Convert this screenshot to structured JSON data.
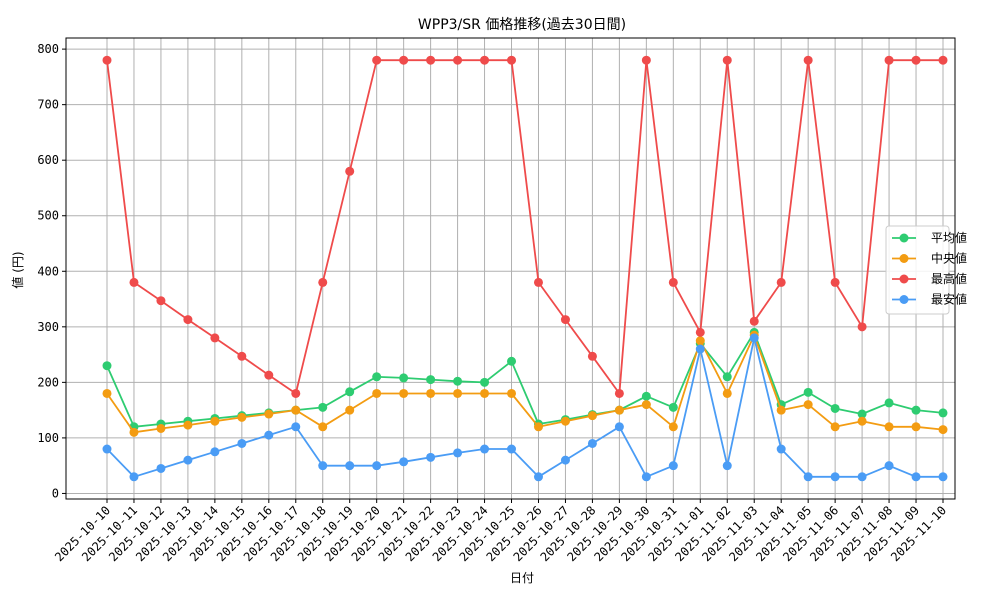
{
  "chart_data": {
    "type": "line",
    "title": "WPP3/SR 価格推移(過去30日間)",
    "xlabel": "日付",
    "ylabel": "値 (円)",
    "ylim": [
      -10,
      820
    ],
    "yticks": [
      0,
      100,
      200,
      300,
      400,
      500,
      600,
      700,
      800
    ],
    "grid": true,
    "legend_position": "center-right",
    "categories": [
      "2025-10-10",
      "2025-10-11",
      "2025-10-12",
      "2025-10-13",
      "2025-10-14",
      "2025-10-15",
      "2025-10-16",
      "2025-10-17",
      "2025-10-18",
      "2025-10-19",
      "2025-10-20",
      "2025-10-21",
      "2025-10-22",
      "2025-10-23",
      "2025-10-24",
      "2025-10-25",
      "2025-10-26",
      "2025-10-27",
      "2025-10-28",
      "2025-10-29",
      "2025-10-30",
      "2025-10-31",
      "2025-11-01",
      "2025-11-02",
      "2025-11-03",
      "2025-11-04",
      "2025-11-05",
      "2025-11-06",
      "2025-11-07",
      "2025-11-08",
      "2025-11-09",
      "2025-11-10"
    ],
    "series": [
      {
        "name": "平均値",
        "color": "#2ecc71",
        "values": [
          230,
          120,
          125,
          130,
          135,
          140,
          145,
          150,
          155,
          183,
          210,
          208,
          205,
          202,
          200,
          238,
          125,
          133,
          142,
          150,
          175,
          155,
          270,
          210,
          290,
          160,
          182,
          153,
          143,
          163,
          150,
          145
        ]
      },
      {
        "name": "中央値",
        "color": "#f39c12",
        "values": [
          180,
          110,
          117,
          123,
          130,
          137,
          143,
          150,
          120,
          150,
          180,
          180,
          180,
          180,
          180,
          180,
          120,
          130,
          140,
          150,
          160,
          120,
          275,
          180,
          285,
          150,
          160,
          120,
          130,
          120,
          120,
          115
        ]
      },
      {
        "name": "最高値",
        "color": "#ef4b4b",
        "values": [
          780,
          380,
          347,
          313,
          280,
          247,
          213,
          180,
          380,
          580,
          780,
          780,
          780,
          780,
          780,
          780,
          380,
          313,
          247,
          180,
          780,
          380,
          290,
          780,
          310,
          380,
          780,
          380,
          300,
          780,
          780,
          780
        ]
      },
      {
        "name": "最安値",
        "color": "#4a9cf5",
        "values": [
          80,
          30,
          45,
          60,
          75,
          90,
          105,
          120,
          50,
          50,
          50,
          57,
          65,
          73,
          80,
          80,
          30,
          60,
          90,
          120,
          30,
          50,
          260,
          50,
          280,
          80,
          30,
          30,
          30,
          50,
          30,
          30
        ]
      }
    ]
  }
}
